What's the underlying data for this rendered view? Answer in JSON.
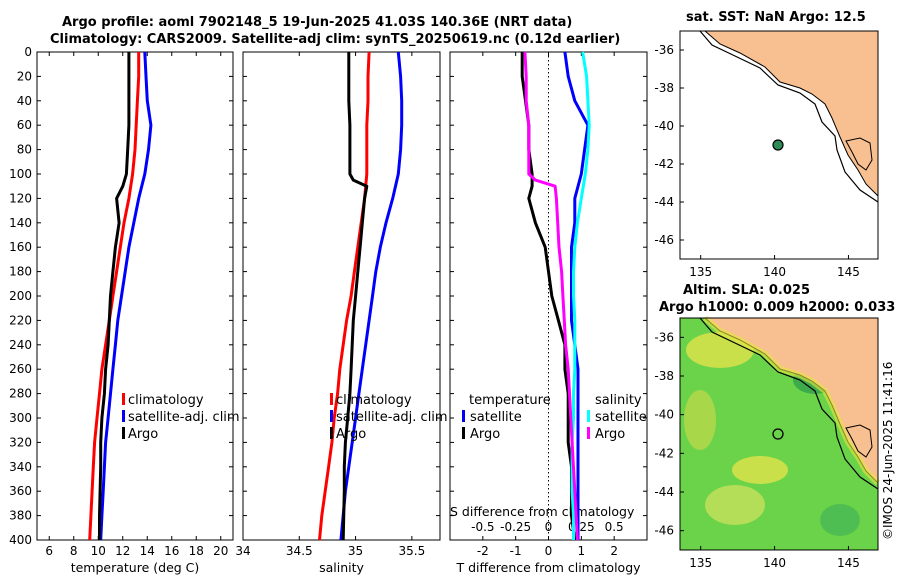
{
  "title": {
    "line1": "Argo profile: aoml 7902148_5 19-Jun-2025 41.03S 140.36E (NRT data)",
    "line2": "Climatology: CARS2009. Satellite-adj clim: synTS_20250619.nc (0.12d earlier)"
  },
  "maps": {
    "sst": {
      "title": "sat. SST: NaN Argo: 12.5"
    },
    "sla": {
      "title_line1": "Altim. SLA: 0.025",
      "title_line2": "Argo h1000: 0.009 h2000: 0.033"
    },
    "lon_ticks": [
      135,
      140,
      145
    ],
    "lat_ticks": [
      -36,
      -38,
      -40,
      -42,
      -44,
      -46
    ],
    "lon_range": [
      133.6,
      147
    ],
    "lat_range": [
      -47,
      -35
    ],
    "argo_position": {
      "lon": 140.36,
      "lat": -41.03
    }
  },
  "footer": {
    "credit": "©IMOS 24-Jun-2025 11:41:16"
  },
  "colors": {
    "climatology": "#ff0000",
    "satellite": "#0000ff",
    "argo": "#000000",
    "sal_diff_clim": "#ff00ff",
    "sal_diff_sat": "#00ffff",
    "land": "#f8c090",
    "ocean": "#ffffff"
  },
  "chart_data": [
    {
      "type": "line",
      "id": "temperature",
      "xlabel": "temperature (deg C)",
      "ylabel": "",
      "xlim": [
        5,
        21
      ],
      "ylim": [
        400,
        0
      ],
      "xticks": [
        6,
        8,
        10,
        12,
        14,
        16,
        18,
        20
      ],
      "yticks": [
        0,
        20,
        40,
        60,
        80,
        100,
        120,
        140,
        160,
        180,
        200,
        220,
        240,
        260,
        280,
        300,
        320,
        340,
        360,
        380,
        400
      ],
      "legend": [
        "climatology",
        "satellite-adj. clim",
        "Argo"
      ],
      "series": [
        {
          "name": "climatology",
          "color": "#ff0000",
          "x": [
            13.3,
            13.3,
            13.2,
            13.1,
            13.0,
            12.8,
            12.5,
            12.1,
            11.8,
            11.5,
            11.2,
            10.9,
            10.6,
            10.3,
            10.1,
            9.9,
            9.7,
            9.6,
            9.5,
            9.4,
            9.3
          ],
          "y": [
            0,
            20,
            40,
            60,
            80,
            100,
            120,
            140,
            160,
            180,
            200,
            220,
            240,
            260,
            280,
            300,
            320,
            340,
            360,
            380,
            400
          ]
        },
        {
          "name": "satellite-adj. clim",
          "color": "#0000ff",
          "x": [
            13.8,
            13.9,
            14.0,
            14.3,
            14.1,
            13.8,
            13.3,
            12.9,
            12.5,
            12.2,
            11.9,
            11.6,
            11.4,
            11.2,
            11.0,
            10.8,
            10.6,
            10.5,
            10.4,
            10.3,
            10.2
          ],
          "y": [
            0,
            20,
            40,
            60,
            80,
            100,
            120,
            140,
            160,
            180,
            200,
            220,
            240,
            260,
            280,
            300,
            320,
            340,
            360,
            380,
            400
          ]
        },
        {
          "name": "Argo",
          "color": "#000000",
          "x": [
            12.5,
            12.5,
            12.5,
            12.5,
            12.4,
            12.3,
            12.0,
            11.5,
            11.7,
            11.4,
            11.2,
            11.0,
            10.9,
            10.8,
            10.6,
            10.5,
            10.3,
            10.2,
            10.2,
            10.1,
            10.1
          ],
          "y": [
            0,
            20,
            40,
            60,
            80,
            100,
            110,
            120,
            140,
            160,
            180,
            200,
            220,
            240,
            260,
            280,
            300,
            320,
            340,
            380,
            400
          ]
        }
      ]
    },
    {
      "type": "line",
      "id": "salinity",
      "xlabel": "salinity",
      "ylabel": "",
      "xlim": [
        34,
        35.75
      ],
      "ylim": [
        400,
        0
      ],
      "xticks": [
        34,
        34.5,
        35,
        35.5
      ],
      "legend": [
        "climatology",
        "satellite-adj. clim",
        "Argo"
      ],
      "series": [
        {
          "name": "climatology",
          "color": "#ff0000",
          "x": [
            35.12,
            35.11,
            35.11,
            35.1,
            35.1,
            35.1,
            35.08,
            35.05,
            35.02,
            34.99,
            34.96,
            34.92,
            34.89,
            34.86,
            34.84,
            34.81,
            34.79,
            34.76,
            34.73,
            34.7,
            34.68
          ],
          "y": [
            0,
            20,
            40,
            60,
            80,
            100,
            120,
            140,
            160,
            180,
            200,
            220,
            240,
            260,
            280,
            300,
            320,
            340,
            360,
            380,
            400
          ]
        },
        {
          "name": "satellite-adj. clim",
          "color": "#0000ff",
          "x": [
            35.38,
            35.4,
            35.41,
            35.41,
            35.4,
            35.38,
            35.33,
            35.27,
            35.22,
            35.18,
            35.15,
            35.12,
            35.09,
            35.06,
            35.03,
            35.0,
            34.97,
            34.94,
            34.91,
            34.89,
            34.87
          ],
          "y": [
            0,
            20,
            40,
            60,
            80,
            100,
            120,
            140,
            160,
            180,
            200,
            220,
            240,
            260,
            280,
            300,
            320,
            340,
            360,
            380,
            400
          ]
        },
        {
          "name": "Argo",
          "color": "#000000",
          "x": [
            34.94,
            34.94,
            34.94,
            34.95,
            34.95,
            34.95,
            34.98,
            35.1,
            35.08,
            35.06,
            35.04,
            35.02,
            35.0,
            34.98,
            34.97,
            34.96,
            34.95,
            34.93,
            34.91,
            34.9,
            34.9,
            34.89
          ],
          "y": [
            0,
            20,
            40,
            60,
            80,
            100,
            105,
            110,
            120,
            140,
            160,
            180,
            200,
            220,
            240,
            260,
            280,
            300,
            320,
            340,
            360,
            400
          ]
        }
      ]
    },
    {
      "type": "line",
      "id": "difference",
      "xlabel": "T difference from climatology",
      "secondary_xlabel": "S difference from climatology",
      "xlim": [
        -3,
        3
      ],
      "ylim": [
        400,
        0
      ],
      "xticks": [
        -2,
        -1,
        0,
        1,
        2
      ],
      "secondary_xticks": [
        -0.5,
        -0.25,
        0,
        0.25,
        0.5
      ],
      "legend_temperature": {
        "header": "temperature",
        "entries": [
          "satellite",
          "Argo"
        ]
      },
      "legend_salinity": {
        "header": "salinity",
        "entries": [
          "satellite",
          "Argo"
        ]
      },
      "series": [
        {
          "name": "T satellite",
          "color": "#0000ff",
          "x": [
            0.5,
            0.6,
            0.8,
            1.2,
            1.1,
            1.0,
            0.8,
            0.8,
            0.7,
            0.7,
            0.7,
            0.7,
            0.8,
            0.9,
            0.9,
            0.9,
            0.9,
            0.9,
            0.9,
            0.9,
            0.9
          ],
          "y": [
            0,
            20,
            40,
            60,
            80,
            100,
            120,
            140,
            160,
            180,
            200,
            220,
            240,
            260,
            280,
            300,
            320,
            340,
            360,
            380,
            400
          ]
        },
        {
          "name": "T Argo",
          "color": "#000000",
          "x": [
            -0.8,
            -0.8,
            -0.7,
            -0.6,
            -0.6,
            -0.5,
            -0.5,
            -0.6,
            -0.4,
            -0.1,
            0.0,
            0.1,
            0.3,
            0.5,
            0.5,
            0.6,
            0.6,
            0.6,
            0.7,
            0.7,
            0.8
          ],
          "y": [
            0,
            20,
            40,
            60,
            80,
            100,
            110,
            120,
            140,
            160,
            180,
            200,
            220,
            240,
            260,
            280,
            300,
            320,
            340,
            380,
            400
          ]
        },
        {
          "name": "S satellite",
          "color": "#00ffff",
          "x": [
            0.26,
            0.29,
            0.3,
            0.31,
            0.3,
            0.28,
            0.25,
            0.22,
            0.2,
            0.19,
            0.19,
            0.2,
            0.2,
            0.2,
            0.19,
            0.19,
            0.18,
            0.18,
            0.18,
            0.19,
            0.19
          ],
          "y": [
            0,
            20,
            40,
            60,
            80,
            100,
            120,
            140,
            160,
            180,
            200,
            220,
            240,
            260,
            280,
            300,
            320,
            340,
            360,
            380,
            400
          ]
        },
        {
          "name": "S Argo",
          "color": "#ff00ff",
          "x": [
            -0.18,
            -0.17,
            -0.17,
            -0.15,
            -0.15,
            -0.15,
            -0.1,
            0.05,
            0.06,
            0.07,
            0.08,
            0.1,
            0.11,
            0.12,
            0.13,
            0.15,
            0.16,
            0.17,
            0.18,
            0.2,
            0.22
          ],
          "y": [
            0,
            20,
            40,
            60,
            80,
            100,
            105,
            110,
            120,
            140,
            160,
            180,
            200,
            220,
            240,
            260,
            280,
            300,
            320,
            360,
            400
          ]
        }
      ]
    }
  ]
}
